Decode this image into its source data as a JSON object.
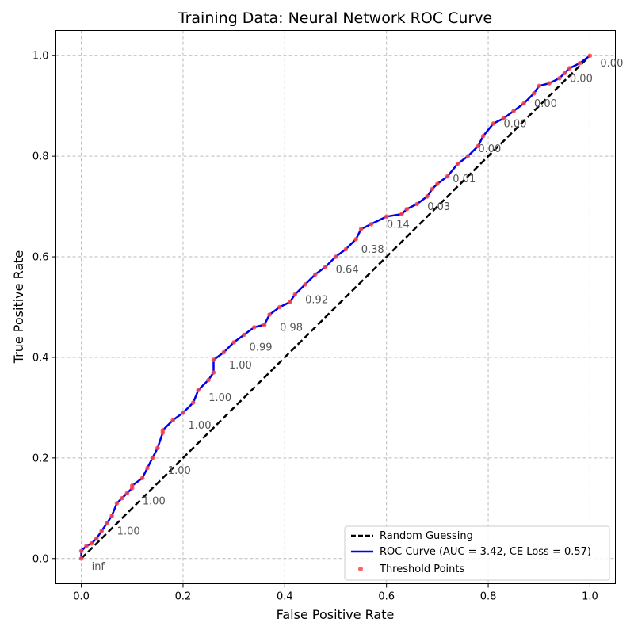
{
  "chart_data": {
    "type": "line",
    "title": "Training Data: Neural Network ROC Curve",
    "xlabel": "False Positive Rate",
    "ylabel": "True Positive Rate",
    "xlim": [
      -0.05,
      1.05
    ],
    "ylim": [
      -0.05,
      1.05
    ],
    "xticks": [
      {
        "value": 0.0,
        "label": "0.0"
      },
      {
        "value": 0.2,
        "label": "0.2"
      },
      {
        "value": 0.4,
        "label": "0.4"
      },
      {
        "value": 0.6,
        "label": "0.6"
      },
      {
        "value": 0.8,
        "label": "0.8"
      },
      {
        "value": 1.0,
        "label": "1.0"
      }
    ],
    "yticks": [
      {
        "value": 0.0,
        "label": "0.0"
      },
      {
        "value": 0.2,
        "label": "0.2"
      },
      {
        "value": 0.4,
        "label": "0.4"
      },
      {
        "value": 0.6,
        "label": "0.6"
      },
      {
        "value": 0.8,
        "label": "0.8"
      },
      {
        "value": 1.0,
        "label": "1.0"
      }
    ],
    "grid": true,
    "legend_position": "lower-right",
    "series": [
      {
        "name": "Random Guessing",
        "style": "dashed",
        "color": "#000000",
        "x": [
          0,
          1
        ],
        "y": [
          0,
          1
        ]
      },
      {
        "name": "ROC Curve (AUC = 3.42, CE Loss = 0.57)",
        "style": "solid",
        "color": "#0000ee",
        "x": [
          0.0,
          0.0,
          0.01,
          0.02,
          0.03,
          0.04,
          0.05,
          0.06,
          0.07,
          0.08,
          0.09,
          0.1,
          0.1,
          0.12,
          0.13,
          0.14,
          0.15,
          0.16,
          0.16,
          0.18,
          0.2,
          0.22,
          0.23,
          0.25,
          0.26,
          0.26,
          0.28,
          0.3,
          0.32,
          0.34,
          0.36,
          0.37,
          0.39,
          0.41,
          0.42,
          0.44,
          0.46,
          0.48,
          0.5,
          0.52,
          0.54,
          0.55,
          0.57,
          0.6,
          0.63,
          0.64,
          0.66,
          0.68,
          0.69,
          0.7,
          0.72,
          0.74,
          0.76,
          0.78,
          0.79,
          0.81,
          0.83,
          0.85,
          0.87,
          0.89,
          0.9,
          0.92,
          0.94,
          0.95,
          0.96,
          0.98,
          1.0
        ],
        "y": [
          0.0,
          0.015,
          0.025,
          0.03,
          0.04,
          0.055,
          0.07,
          0.085,
          0.11,
          0.12,
          0.13,
          0.14,
          0.145,
          0.16,
          0.18,
          0.2,
          0.22,
          0.25,
          0.255,
          0.275,
          0.29,
          0.31,
          0.335,
          0.355,
          0.37,
          0.395,
          0.41,
          0.43,
          0.445,
          0.46,
          0.465,
          0.485,
          0.5,
          0.51,
          0.525,
          0.545,
          0.565,
          0.58,
          0.6,
          0.615,
          0.635,
          0.655,
          0.665,
          0.68,
          0.685,
          0.695,
          0.705,
          0.72,
          0.735,
          0.745,
          0.76,
          0.785,
          0.8,
          0.82,
          0.84,
          0.865,
          0.875,
          0.89,
          0.905,
          0.925,
          0.94,
          0.945,
          0.955,
          0.965,
          0.975,
          0.985,
          1.0
        ]
      },
      {
        "name": "Threshold Points",
        "style": "scatter",
        "color": "#ff4444"
      }
    ],
    "threshold_labels": [
      {
        "x": 0.0,
        "y": 0.0,
        "label": "inf"
      },
      {
        "x": 0.05,
        "y": 0.07,
        "label": "1.00"
      },
      {
        "x": 0.1,
        "y": 0.13,
        "label": "1.00"
      },
      {
        "x": 0.15,
        "y": 0.19,
        "label": "1.00"
      },
      {
        "x": 0.19,
        "y": 0.28,
        "label": "1.00"
      },
      {
        "x": 0.23,
        "y": 0.335,
        "label": "1.00"
      },
      {
        "x": 0.27,
        "y": 0.4,
        "label": "1.00"
      },
      {
        "x": 0.31,
        "y": 0.435,
        "label": "0.99"
      },
      {
        "x": 0.37,
        "y": 0.475,
        "label": "0.98"
      },
      {
        "x": 0.42,
        "y": 0.53,
        "label": "0.92"
      },
      {
        "x": 0.48,
        "y": 0.59,
        "label": "0.64"
      },
      {
        "x": 0.53,
        "y": 0.63,
        "label": "0.38"
      },
      {
        "x": 0.58,
        "y": 0.68,
        "label": "0.14"
      },
      {
        "x": 0.66,
        "y": 0.715,
        "label": "0.03"
      },
      {
        "x": 0.71,
        "y": 0.77,
        "label": "0.01"
      },
      {
        "x": 0.76,
        "y": 0.83,
        "label": "0.00"
      },
      {
        "x": 0.81,
        "y": 0.88,
        "label": "0.00"
      },
      {
        "x": 0.87,
        "y": 0.92,
        "label": "0.00"
      },
      {
        "x": 0.94,
        "y": 0.97,
        "label": "0.00"
      },
      {
        "x": 1.0,
        "y": 1.0,
        "label": "0.00"
      }
    ]
  }
}
